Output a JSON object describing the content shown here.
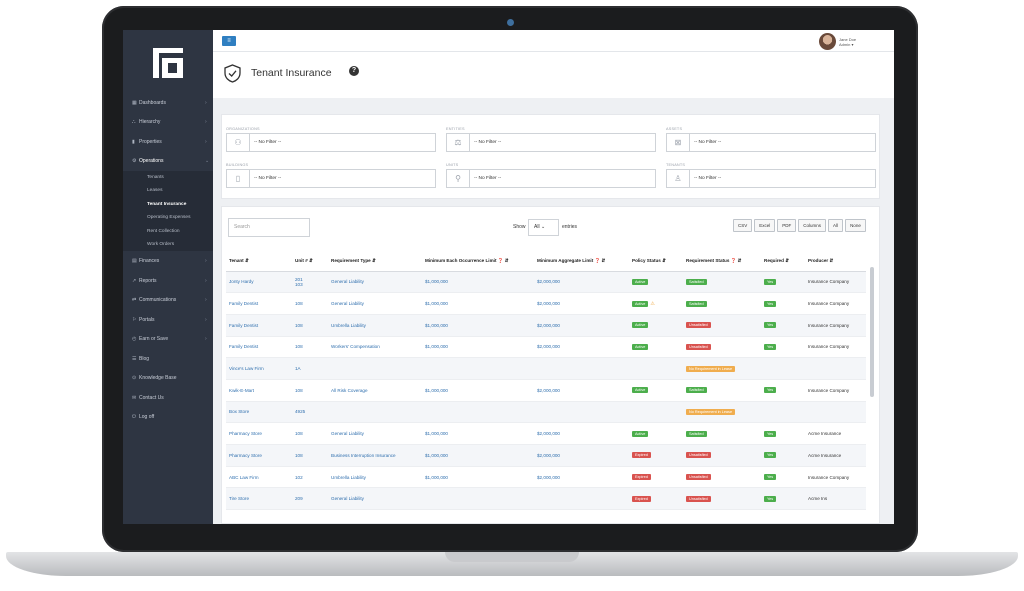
{
  "sidebar": {
    "items": [
      {
        "icon": "▦",
        "label": "Dashboards",
        "chev": "›"
      },
      {
        "icon": "⛬",
        "label": "Hierarchy",
        "chev": "›"
      },
      {
        "icon": "▮",
        "label": "Properties",
        "chev": "›"
      },
      {
        "icon": "⚙",
        "label": "Operations",
        "chev": "⌄"
      }
    ],
    "sub_items": [
      "Tenants",
      "Leases",
      "Tenant Insurance",
      "Operating Expenses",
      "Rent Collection",
      "Work Orders"
    ],
    "items2": [
      {
        "icon": "▤",
        "label": "Finances",
        "chev": "›"
      },
      {
        "icon": "↗",
        "label": "Reports",
        "chev": "›"
      },
      {
        "icon": "⇄",
        "label": "Communications",
        "chev": "›"
      },
      {
        "icon": "⚐",
        "label": "Portals",
        "chev": "›"
      },
      {
        "icon": "◴",
        "label": "Earn or Save",
        "chev": "›"
      },
      {
        "icon": "☰",
        "label": "Blog",
        "chev": ""
      },
      {
        "icon": "⊙",
        "label": "Knowledge Base",
        "chev": ""
      },
      {
        "icon": "✉",
        "label": "Contact Us",
        "chev": ""
      },
      {
        "icon": "⏻",
        "label": "Log off",
        "chev": ""
      }
    ]
  },
  "header": {
    "user_name": "Jane Doe",
    "user_role": "Admin ▾"
  },
  "page": {
    "title": "Tenant Insurance",
    "help": "?"
  },
  "filters": [
    {
      "label": "ORGANIZATIONS",
      "value": "-- No Filter --",
      "icon": "⚇"
    },
    {
      "label": "ENTITIES",
      "value": "-- No Filter --",
      "icon": "⚖"
    },
    {
      "label": "ASSETS",
      "value": "-- No Filter --",
      "icon": "⊠"
    },
    {
      "label": "BUILDINGS",
      "value": "-- No Filter --",
      "icon": "▯"
    },
    {
      "label": "UNITS",
      "value": "-- No Filter --",
      "icon": "⚲"
    },
    {
      "label": "TENANTS",
      "value": "-- No Filter --",
      "icon": "♙"
    }
  ],
  "table_controls": {
    "search_placeholder": "Search",
    "show": "Show",
    "entries_value": "All",
    "entries": "entries",
    "buttons": [
      "CSV",
      "Excel",
      "PDF",
      "Columns",
      "All",
      "None"
    ]
  },
  "columns": [
    "Tenant",
    "Unit #",
    "Requirement Type",
    "Minimum Each Occurrence Limit ❓",
    "Minimum Aggregate Limit ❓",
    "Policy Status",
    "Requirement Status ❓",
    "Required",
    "Producer"
  ],
  "rows": [
    {
      "tenant": "Jonty Hardy",
      "unit": "201\n103",
      "req": "General Liability",
      "occ": "$1,000,000",
      "agg": "$2,000,000",
      "policy": "Active",
      "policy_c": "g",
      "warn": false,
      "status": "Satisfied",
      "status_c": "g",
      "required": "Yes",
      "producer": "Insurance Company"
    },
    {
      "tenant": "Family Dentist",
      "unit": "108",
      "req": "General Liability",
      "occ": "$1,000,000",
      "agg": "$2,000,000",
      "policy": "Active",
      "policy_c": "g",
      "warn": true,
      "status": "Satisfied",
      "status_c": "g",
      "required": "Yes",
      "producer": "Insurance Company"
    },
    {
      "tenant": "Family Dentist",
      "unit": "108",
      "req": "Umbrella Liability",
      "occ": "$1,000,000",
      "agg": "$2,000,000",
      "policy": "Active",
      "policy_c": "g",
      "warn": false,
      "status": "Unsatisfied",
      "status_c": "r",
      "required": "Yes",
      "producer": "Insurance Company"
    },
    {
      "tenant": "Family Dentist",
      "unit": "108",
      "req": "Workers' Compensation",
      "occ": "$1,000,000",
      "agg": "$2,000,000",
      "policy": "Active",
      "policy_c": "g",
      "warn": false,
      "status": "Unsatisfied",
      "status_c": "r",
      "required": "Yes",
      "producer": "Insurance Company"
    },
    {
      "tenant": "Vince's Law Firm",
      "unit": "1A",
      "req": "",
      "occ": "",
      "agg": "",
      "policy": "",
      "policy_c": "",
      "warn": false,
      "status": "No Requirement in Lease",
      "status_c": "o",
      "required": "",
      "producer": ""
    },
    {
      "tenant": "Kwik-E-Mart",
      "unit": "108",
      "req": "All Risk Coverage",
      "occ": "$1,000,000",
      "agg": "$2,000,000",
      "policy": "Active",
      "policy_c": "g",
      "warn": false,
      "status": "Satisfied",
      "status_c": "g",
      "required": "Yes",
      "producer": "Insurance Company"
    },
    {
      "tenant": "Box Store",
      "unit": "4925",
      "req": "",
      "occ": "",
      "agg": "",
      "policy": "",
      "policy_c": "",
      "warn": false,
      "status": "No Requirement in Lease",
      "status_c": "o",
      "required": "",
      "producer": ""
    },
    {
      "tenant": "Pharmacy Store",
      "unit": "108",
      "req": "General Liability",
      "occ": "$1,000,000",
      "agg": "$2,000,000",
      "policy": "Active",
      "policy_c": "g",
      "warn": false,
      "status": "Satisfied",
      "status_c": "g",
      "required": "Yes",
      "producer": "Acme Insurance"
    },
    {
      "tenant": "Pharmacy Store",
      "unit": "108",
      "req": "Business Interruption Insurance",
      "occ": "$1,000,000",
      "agg": "$2,000,000",
      "policy": "Expired",
      "policy_c": "r",
      "warn": false,
      "status": "Unsatisfied",
      "status_c": "r",
      "required": "Yes",
      "producer": "Acme Insurance"
    },
    {
      "tenant": "ABC Law Firm",
      "unit": "102",
      "req": "Umbrella Liability",
      "occ": "$1,000,000",
      "agg": "$2,000,000",
      "policy": "Expired",
      "policy_c": "r",
      "warn": false,
      "status": "Unsatisfied",
      "status_c": "r",
      "required": "Yes",
      "producer": "Insurance Company"
    },
    {
      "tenant": "Tire Store",
      "unit": "209",
      "req": "General Liability",
      "occ": "",
      "agg": "",
      "policy": "Expired",
      "policy_c": "r",
      "warn": false,
      "status": "Unsatisfied",
      "status_c": "r",
      "required": "Yes",
      "producer": "Acme Ins"
    }
  ]
}
